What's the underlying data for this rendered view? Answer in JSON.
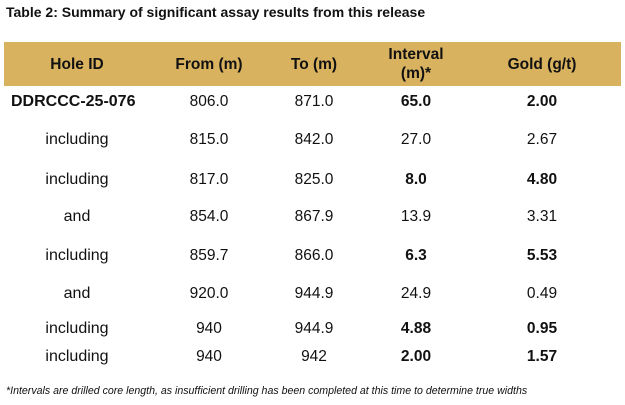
{
  "title": "Table 2: Summary of significant assay results from this release",
  "table": {
    "headers": {
      "hole_id": "Hole ID",
      "from": "From (m)",
      "to": "To (m)",
      "interval_line1": "Interval",
      "interval_line2": "(m)*",
      "gold": "Gold (g/t)"
    },
    "rows": [
      {
        "hole": "DDRCCC-25-076",
        "from": "806.0",
        "to": "871.0",
        "interval": "65.0",
        "gold": "2.00"
      },
      {
        "hole": "including",
        "from": "815.0",
        "to": "842.0",
        "interval": "27.0",
        "gold": "2.67"
      },
      {
        "hole": "including",
        "from": "817.0",
        "to": "825.0",
        "interval": "8.0",
        "gold": "4.80"
      },
      {
        "hole": "and",
        "from": "854.0",
        "to": "867.9",
        "interval": "13.9",
        "gold": "3.31"
      },
      {
        "hole": "including",
        "from": "859.7",
        "to": "866.0",
        "interval": "6.3",
        "gold": "5.53"
      },
      {
        "hole": "and",
        "from": "920.0",
        "to": "944.9",
        "interval": "24.9",
        "gold": "0.49"
      },
      {
        "hole": "including",
        "from": "940",
        "to": "944.9",
        "interval": "4.88",
        "gold": "0.95"
      },
      {
        "hole": "including",
        "from": "940",
        "to": "942",
        "interval": "2.00",
        "gold": "1.57"
      }
    ]
  },
  "footnote": "*Intervals are drilled core length, as insufficient drilling has been completed at this time to determine true widths",
  "colors": {
    "header_bg": "#d9b25f",
    "text": "#111111"
  }
}
